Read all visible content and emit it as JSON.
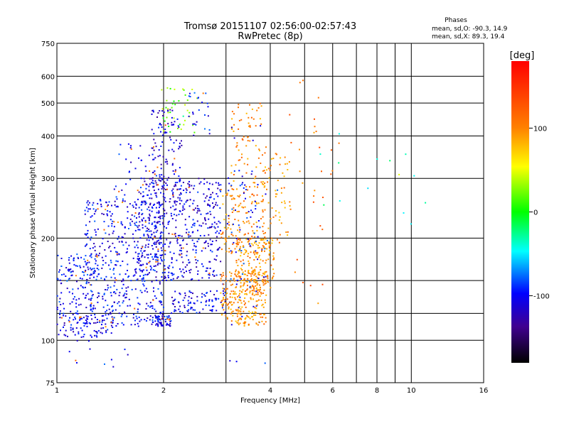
{
  "chart_data": {
    "type": "scatter",
    "title": "Tromsø 20151107 02:56:00-02:57:43",
    "subtitle": "RwPretec (8p)",
    "xlabel": "Frequency [MHz]",
    "ylabel": "Stationary phase Virtual Height [km]",
    "xscale": "log",
    "yscale": "log",
    "xlim": [
      1,
      16
    ],
    "ylim": [
      75,
      750
    ],
    "x_ticks": [
      1,
      2,
      4,
      6,
      8,
      10,
      16
    ],
    "x_tick_labels": [
      "1",
      "2",
      "4",
      "6",
      "8",
      "10",
      "16"
    ],
    "x_grid_extra": [
      3,
      5,
      7,
      9
    ],
    "y_ticks": [
      75,
      100,
      200,
      300,
      400,
      500,
      600,
      750
    ],
    "y_tick_labels": [
      "75",
      "100",
      "200",
      "300",
      "400",
      "500",
      "600",
      "750"
    ],
    "y_grid_extra": [
      120,
      150
    ],
    "grid": true,
    "legend": {
      "title": "Phases",
      "lines": [
        "mean, sd,O: -90.3, 14.9",
        "mean, sd,X:  89.3, 19.4"
      ],
      "placement": "top-right"
    },
    "colorbar": {
      "label": "[deg]",
      "range": [
        -180,
        180
      ],
      "ticks": [
        100,
        0,
        -100
      ],
      "tick_labels": [
        "100",
        "0",
        "-100"
      ],
      "placement": "right"
    },
    "clusters": [
      {
        "x": [
          1.0,
          1.45
        ],
        "y": [
          102,
          118
        ],
        "phase": -110,
        "n": 90
      },
      {
        "x": [
          1.0,
          1.3
        ],
        "y": [
          118,
          180
        ],
        "phase": -100,
        "n": 130
      },
      {
        "x": [
          1.2,
          2.0
        ],
        "y": [
          110,
          260
        ],
        "phase": -105,
        "n": 520
      },
      {
        "x": [
          1.7,
          2.9
        ],
        "y": [
          150,
          300
        ],
        "phase": -110,
        "n": 480
      },
      {
        "x": [
          1.85,
          2.25
        ],
        "y": [
          250,
          480
        ],
        "phase": -115,
        "n": 130
      },
      {
        "x": [
          1.45,
          1.95
        ],
        "y": [
          250,
          380
        ],
        "phase": -105,
        "n": 50
      },
      {
        "x": [
          1.9,
          2.5
        ],
        "y": [
          400,
          560
        ],
        "phase": 20,
        "n": 40
      },
      {
        "x": [
          2.35,
          2.7
        ],
        "y": [
          400,
          540
        ],
        "phase": -100,
        "n": 25
      },
      {
        "x": [
          1.9,
          2.1
        ],
        "y": [
          110,
          118
        ],
        "phase": -105,
        "n": 60
      },
      {
        "x": [
          2.1,
          3.0
        ],
        "y": [
          120,
          140
        ],
        "phase": -110,
        "n": 90
      },
      {
        "x": [
          2.9,
          3.9
        ],
        "y": [
          110,
          160
        ],
        "phase": 95,
        "n": 260
      },
      {
        "x": [
          3.2,
          4.1
        ],
        "y": [
          140,
          200
        ],
        "phase": 95,
        "n": 180
      },
      {
        "x": [
          2.9,
          3.9
        ],
        "y": [
          180,
          280
        ],
        "phase": 100,
        "n": 140
      },
      {
        "x": [
          3.1,
          3.9
        ],
        "y": [
          280,
          500
        ],
        "phase": 100,
        "n": 80
      },
      {
        "x": [
          3.0,
          3.7
        ],
        "y": [
          150,
          320
        ],
        "phase": -100,
        "n": 50
      },
      {
        "x": [
          3.8,
          4.6
        ],
        "y": [
          190,
          360
        ],
        "phase": 95,
        "n": 70
      },
      {
        "x": [
          4.4,
          6.6
        ],
        "y": [
          120,
          600
        ],
        "phase": 110,
        "n": 30
      },
      {
        "x": [
          5.5,
          11
        ],
        "y": [
          200,
          420
        ],
        "phase": -40,
        "n": 14
      },
      {
        "x": [
          1.0,
          4.0
        ],
        "y": [
          80,
          100
        ],
        "phase": -100,
        "n": 14
      }
    ]
  }
}
